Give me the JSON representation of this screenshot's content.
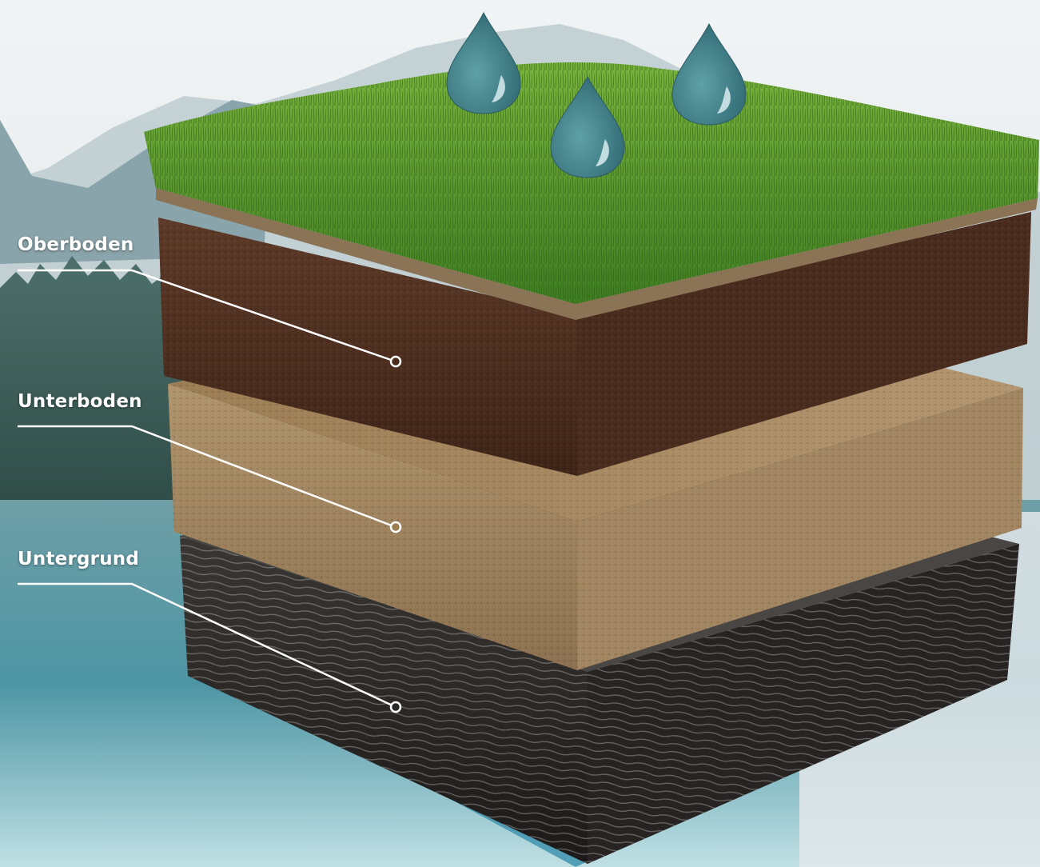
{
  "layers": [
    {
      "id": "oberboden",
      "label": "Oberboden"
    },
    {
      "id": "unterboden",
      "label": "Unterboden"
    },
    {
      "id": "untergrund",
      "label": "Untergrund"
    }
  ],
  "icons": [
    "water-drop-icon",
    "water-drop-icon",
    "water-drop-icon"
  ],
  "colors": {
    "grass": "#4f8f2a",
    "topsoil": "#5a3524",
    "subsoil": "#a88a62",
    "bedrock": "#2a2826",
    "water_drop": "#3c7e86",
    "label_text": "#ffffff"
  }
}
